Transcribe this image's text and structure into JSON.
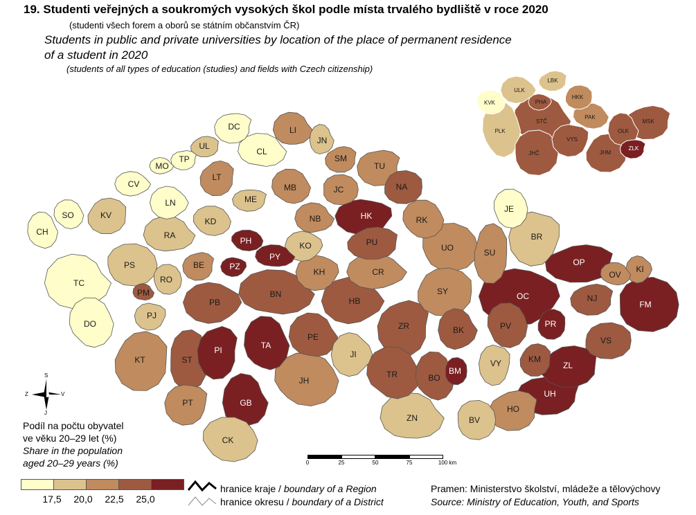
{
  "title": {
    "cz": "19. Studenti veřejných a soukromých vysokých škol podle místa trvalého bydliště v roce 2020",
    "cz_sub": "(studenti všech forem a oborů se státním občanstvím ČR)",
    "en_line1": "Students in public and private universities by location of the place of permanent residence",
    "en_line2": "of a student in 2020",
    "en_sub": "(students of all types of education (studies) and fields with Czech citizenship)"
  },
  "legend": {
    "title_cz_1": "Podíl na počtu obyvatel",
    "title_cz_2": "ve věku 20–29 let (%)",
    "title_en_1": "Share in the population",
    "title_en_2": "aged 20–29 years (%)",
    "thresholds": [
      "17,5",
      "20,0",
      "22,5",
      "25,0"
    ],
    "colors": [
      "#fffdc9",
      "#dcc28c",
      "#c08b5e",
      "#9d5a40",
      "#7a2022"
    ],
    "region_boundary_cz": "hranice kraje / ",
    "region_boundary_en": "boundary of a Region",
    "district_boundary_cz": "hranice okresu / ",
    "district_boundary_en": "boundary of a District"
  },
  "source": {
    "cz": "Pramen: Ministerstvo školství, mládeže a tělovýchovy",
    "en": "Source: Ministry of Education, Youth, and Sports"
  },
  "scale": {
    "labels": [
      "0",
      "25",
      "50",
      "75",
      "100 km"
    ]
  },
  "compass": {
    "n": "S",
    "s": "J",
    "e": "V",
    "w": "Z"
  },
  "districts": [
    {
      "code": "CH",
      "class": 0
    },
    {
      "code": "SO",
      "class": 0
    },
    {
      "code": "KV",
      "class": 1
    },
    {
      "code": "CV",
      "class": 0
    },
    {
      "code": "MO",
      "class": 0
    },
    {
      "code": "TP",
      "class": 0
    },
    {
      "code": "LN",
      "class": 0
    },
    {
      "code": "DC",
      "class": 0
    },
    {
      "code": "UL",
      "class": 1
    },
    {
      "code": "LT",
      "class": 2
    },
    {
      "code": "CL",
      "class": 0
    },
    {
      "code": "LI",
      "class": 2
    },
    {
      "code": "JN",
      "class": 1
    },
    {
      "code": "SM",
      "class": 2
    },
    {
      "code": "MB",
      "class": 2
    },
    {
      "code": "ME",
      "class": 1
    },
    {
      "code": "KD",
      "class": 1
    },
    {
      "code": "RA",
      "class": 1
    },
    {
      "code": "PH",
      "class": 4
    },
    {
      "code": "PZ",
      "class": 4
    },
    {
      "code": "PY",
      "class": 4
    },
    {
      "code": "BE",
      "class": 2
    },
    {
      "code": "KO",
      "class": 1
    },
    {
      "code": "NB",
      "class": 2
    },
    {
      "code": "JC",
      "class": 2
    },
    {
      "code": "TU",
      "class": 2
    },
    {
      "code": "NA",
      "class": 3
    },
    {
      "code": "HK",
      "class": 4
    },
    {
      "code": "RK",
      "class": 2
    },
    {
      "code": "PU",
      "class": 3
    },
    {
      "code": "CR",
      "class": 2
    },
    {
      "code": "KH",
      "class": 2
    },
    {
      "code": "TC",
      "class": 0
    },
    {
      "code": "DO",
      "class": 0
    },
    {
      "code": "PS",
      "class": 1
    },
    {
      "code": "RO",
      "class": 1
    },
    {
      "code": "PM",
      "class": 3
    },
    {
      "code": "PJ",
      "class": 1
    },
    {
      "code": "KT",
      "class": 2
    },
    {
      "code": "PB",
      "class": 3
    },
    {
      "code": "BN",
      "class": 3
    },
    {
      "code": "ST",
      "class": 3
    },
    {
      "code": "PI",
      "class": 4
    },
    {
      "code": "TA",
      "class": 4
    },
    {
      "code": "GB",
      "class": 4
    },
    {
      "code": "PT",
      "class": 2
    },
    {
      "code": "CK",
      "class": 1
    },
    {
      "code": "JH",
      "class": 2
    },
    {
      "code": "PE",
      "class": 3
    },
    {
      "code": "HB",
      "class": 3
    },
    {
      "code": "JI",
      "class": 1
    },
    {
      "code": "ZR",
      "class": 3
    },
    {
      "code": "TR",
      "class": 3
    },
    {
      "code": "UO",
      "class": 2
    },
    {
      "code": "SY",
      "class": 2
    },
    {
      "code": "SU",
      "class": 2
    },
    {
      "code": "JE",
      "class": 0
    },
    {
      "code": "BR",
      "class": 1
    },
    {
      "code": "OP",
      "class": 4
    },
    {
      "code": "OV",
      "class": 2
    },
    {
      "code": "KI",
      "class": 2
    },
    {
      "code": "OC",
      "class": 4
    },
    {
      "code": "PV",
      "class": 3
    },
    {
      "code": "PR",
      "class": 4
    },
    {
      "code": "NJ",
      "class": 3
    },
    {
      "code": "FM",
      "class": 4
    },
    {
      "code": "VS",
      "class": 3
    },
    {
      "code": "KM",
      "class": 3
    },
    {
      "code": "ZL",
      "class": 4
    },
    {
      "code": "UH",
      "class": 4
    },
    {
      "code": "BK",
      "class": 3
    },
    {
      "code": "BM",
      "class": 4
    },
    {
      "code": "BO",
      "class": 3
    },
    {
      "code": "VY",
      "class": 1
    },
    {
      "code": "HO",
      "class": 2
    },
    {
      "code": "BV",
      "class": 1
    },
    {
      "code": "ZN",
      "class": 1
    }
  ],
  "regions": [
    {
      "code": "KVK",
      "class": 0
    },
    {
      "code": "ULK",
      "class": 1
    },
    {
      "code": "LBK",
      "class": 1
    },
    {
      "code": "HKK",
      "class": 2
    },
    {
      "code": "PHA",
      "class": 3
    },
    {
      "code": "PAK",
      "class": 2
    },
    {
      "code": "STČ",
      "class": 3
    },
    {
      "code": "OLK",
      "class": 3
    },
    {
      "code": "MSK",
      "class": 3
    },
    {
      "code": "PLK",
      "class": 1
    },
    {
      "code": "VYS",
      "class": 3
    },
    {
      "code": "JHČ",
      "class": 3
    },
    {
      "code": "JHM",
      "class": 3
    },
    {
      "code": "ZLK",
      "class": 4
    }
  ]
}
